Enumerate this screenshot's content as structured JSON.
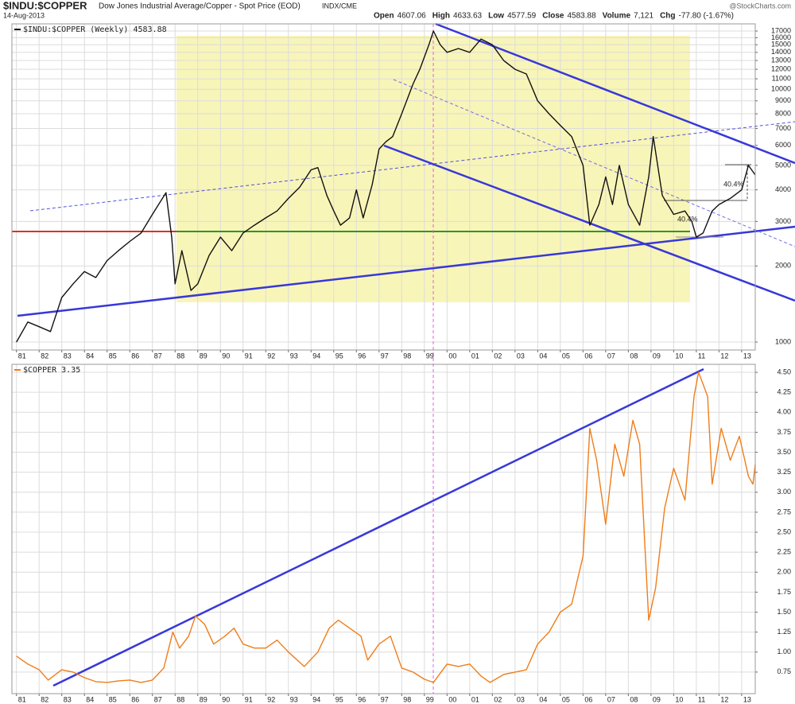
{
  "chart_data": [
    {
      "type": "line",
      "title": "$INDU:$COPPER",
      "subtitle": "Dow Jones Industrial Average/Copper - Spot Price (EOD)",
      "source": "INDX/CME",
      "date": "14-Aug-2013",
      "credit": "@StockCharts.com",
      "quote": [
        {
          "label": "Open",
          "value": "4607.06"
        },
        {
          "label": "High",
          "value": "4633.63"
        },
        {
          "label": "Low",
          "value": "4577.59"
        },
        {
          "label": "Close",
          "value": "4583.88"
        },
        {
          "label": "Volume",
          "value": "7,121"
        },
        {
          "label": "Chg",
          "value": "-77.80 (-1.67%)"
        }
      ],
      "annotations": [
        "40.4%",
        "40.4%"
      ],
      "log_scale": true,
      "grid": true,
      "xlim": [
        1980.8,
        2013.6
      ],
      "ylim": [
        930,
        18150
      ],
      "yticks": [
        1000,
        2000,
        3000,
        4000,
        5000,
        6000,
        7000,
        8000,
        9000,
        10000,
        11000,
        12000,
        13000,
        14000,
        15000,
        16000,
        17000
      ],
      "xticks": [
        {
          "value": 1981,
          "label": "81"
        },
        {
          "value": 1982,
          "label": "82"
        },
        {
          "value": 1983,
          "label": "83"
        },
        {
          "value": 1984,
          "label": "84"
        },
        {
          "value": 1985,
          "label": "85"
        },
        {
          "value": 1986,
          "label": "86"
        },
        {
          "value": 1987,
          "label": "87"
        },
        {
          "value": 1988,
          "label": "88"
        },
        {
          "value": 1989,
          "label": "89"
        },
        {
          "value": 1990,
          "label": "90"
        },
        {
          "value": 1991,
          "label": "91"
        },
        {
          "value": 1992,
          "label": "92"
        },
        {
          "value": 1993,
          "label": "93"
        },
        {
          "value": 1994,
          "label": "94"
        },
        {
          "value": 1995,
          "label": "95"
        },
        {
          "value": 1996,
          "label": "96"
        },
        {
          "value": 1997,
          "label": "97"
        },
        {
          "value": 1998,
          "label": "98"
        },
        {
          "value": 1999,
          "label": "99"
        },
        {
          "value": 2000,
          "label": "00"
        },
        {
          "value": 2001,
          "label": "01"
        },
        {
          "value": 2002,
          "label": "02"
        },
        {
          "value": 2003,
          "label": "03"
        },
        {
          "value": 2004,
          "label": "04"
        },
        {
          "value": 2005,
          "label": "05"
        },
        {
          "value": 2006,
          "label": "06"
        },
        {
          "value": 2007,
          "label": "07"
        },
        {
          "value": 2008,
          "label": "08"
        },
        {
          "value": 2009,
          "label": "09"
        },
        {
          "value": 2010,
          "label": "10"
        },
        {
          "value": 2011,
          "label": "11"
        },
        {
          "value": 2012,
          "label": "12"
        },
        {
          "value": 2013,
          "label": "13"
        }
      ],
      "x": [
        1981.0,
        1981.5,
        1982.0,
        1982.5,
        1983.0,
        1983.5,
        1984.0,
        1984.5,
        1985.0,
        1985.5,
        1986.0,
        1986.5,
        1987.0,
        1987.6,
        1987.85,
        1988.0,
        1988.3,
        1988.7,
        1989.0,
        1989.5,
        1990.0,
        1990.5,
        1991.0,
        1991.5,
        1992.0,
        1992.5,
        1993.0,
        1993.5,
        1994.0,
        1994.3,
        1994.7,
        1995.0,
        1995.3,
        1995.7,
        1996.0,
        1996.3,
        1996.7,
        1997.0,
        1997.3,
        1997.6,
        1998.0,
        1998.5,
        1998.8,
        1999.2,
        1999.4,
        1999.7,
        2000.0,
        2000.5,
        2001.0,
        2001.5,
        2002.0,
        2002.5,
        2003.0,
        2003.5,
        2004.0,
        2004.5,
        2005.0,
        2005.5,
        2006.0,
        2006.3,
        2006.7,
        2007.0,
        2007.3,
        2007.6,
        2008.0,
        2008.5,
        2008.9,
        2009.1,
        2009.5,
        2010.0,
        2010.5,
        2010.8,
        2011.0,
        2011.3,
        2011.7,
        2012.0,
        2012.5,
        2013.0,
        2013.3,
        2013.6
      ],
      "series": [
        {
          "name": "$INDU:$COPPER (Weekly) 4583.88",
          "color": "#111111",
          "values": [
            1000,
            1200,
            1150,
            1100,
            1500,
            1700,
            1900,
            1800,
            2100,
            2300,
            2500,
            2700,
            3200,
            3900,
            2600,
            1700,
            2300,
            1600,
            1700,
            2200,
            2600,
            2300,
            2700,
            2900,
            3100,
            3300,
            3700,
            4100,
            4800,
            4900,
            3800,
            3300,
            2900,
            3100,
            4000,
            3100,
            4200,
            5800,
            6200,
            6500,
            8000,
            10500,
            12000,
            15000,
            17000,
            15000,
            14000,
            14500,
            14000,
            15800,
            15000,
            13000,
            12000,
            11500,
            9000,
            8000,
            7200,
            6500,
            5000,
            2900,
            3500,
            4500,
            3500,
            5000,
            3500,
            2900,
            4500,
            6500,
            3800,
            3200,
            3300,
            3000,
            2600,
            2700,
            3300,
            3500,
            3700,
            4000,
            5000,
            4584
          ]
        }
      ]
    },
    {
      "type": "line",
      "grid": true,
      "xlim": [
        1980.8,
        2013.6
      ],
      "ylim": [
        0.48,
        4.6
      ],
      "yticks": [
        0.75,
        {
          "value": 1,
          "label": "1.00"
        },
        1.25,
        {
          "value": 1.5,
          "label": "1.50"
        },
        1.75,
        {
          "value": 2,
          "label": "2.00"
        },
        2.25,
        {
          "value": 2.5,
          "label": "2.50"
        },
        2.75,
        {
          "value": 3,
          "label": "3.00"
        },
        3.25,
        {
          "value": 3.5,
          "label": "3.50"
        },
        3.75,
        {
          "value": 4,
          "label": "4.00"
        },
        4.25,
        {
          "value": 4.5,
          "label": "4.50"
        }
      ],
      "xticks": [
        {
          "value": 1981,
          "label": "81"
        },
        {
          "value": 1982,
          "label": "82"
        },
        {
          "value": 1983,
          "label": "83"
        },
        {
          "value": 1984,
          "label": "84"
        },
        {
          "value": 1985,
          "label": "85"
        },
        {
          "value": 1986,
          "label": "86"
        },
        {
          "value": 1987,
          "label": "87"
        },
        {
          "value": 1988,
          "label": "88"
        },
        {
          "value": 1989,
          "label": "89"
        },
        {
          "value": 1990,
          "label": "90"
        },
        {
          "value": 1991,
          "label": "91"
        },
        {
          "value": 1992,
          "label": "92"
        },
        {
          "value": 1993,
          "label": "93"
        },
        {
          "value": 1994,
          "label": "94"
        },
        {
          "value": 1995,
          "label": "95"
        },
        {
          "value": 1996,
          "label": "96"
        },
        {
          "value": 1997,
          "label": "97"
        },
        {
          "value": 1998,
          "label": "98"
        },
        {
          "value": 1999,
          "label": "99"
        },
        {
          "value": 2000,
          "label": "00"
        },
        {
          "value": 2001,
          "label": "01"
        },
        {
          "value": 2002,
          "label": "02"
        },
        {
          "value": 2003,
          "label": "03"
        },
        {
          "value": 2004,
          "label": "04"
        },
        {
          "value": 2005,
          "label": "05"
        },
        {
          "value": 2006,
          "label": "06"
        },
        {
          "value": 2007,
          "label": "07"
        },
        {
          "value": 2008,
          "label": "08"
        },
        {
          "value": 2009,
          "label": "09"
        },
        {
          "value": 2010,
          "label": "10"
        },
        {
          "value": 2011,
          "label": "11"
        },
        {
          "value": 2012,
          "label": "12"
        },
        {
          "value": 2013,
          "label": "13"
        }
      ],
      "x": [
        1981.0,
        1981.5,
        1982.0,
        1982.4,
        1983.0,
        1983.5,
        1984.0,
        1984.5,
        1985.0,
        1985.5,
        1986.0,
        1986.5,
        1987.0,
        1987.5,
        1987.9,
        1988.2,
        1988.6,
        1988.9,
        1989.3,
        1989.7,
        1990.2,
        1990.6,
        1991.0,
        1991.5,
        1992.0,
        1992.5,
        1993.0,
        1993.7,
        1994.3,
        1994.8,
        1995.2,
        1995.7,
        1996.2,
        1996.5,
        1997.0,
        1997.5,
        1998.0,
        1998.5,
        1999.0,
        1999.4,
        2000.0,
        2000.5,
        2001.0,
        2001.5,
        2001.9,
        2002.5,
        2003.0,
        2003.5,
        2004.0,
        2004.5,
        2005.0,
        2005.5,
        2006.0,
        2006.3,
        2006.6,
        2007.0,
        2007.4,
        2007.8,
        2008.2,
        2008.5,
        2008.9,
        2009.2,
        2009.6,
        2010.0,
        2010.5,
        2010.9,
        2011.1,
        2011.5,
        2011.7,
        2012.1,
        2012.5,
        2012.9,
        2013.3,
        2013.5,
        2013.6
      ],
      "series": [
        {
          "name": "$COPPER 3.35",
          "color": "#f07d1a",
          "values": [
            0.95,
            0.85,
            0.78,
            0.65,
            0.78,
            0.75,
            0.68,
            0.63,
            0.62,
            0.64,
            0.65,
            0.62,
            0.65,
            0.8,
            1.25,
            1.05,
            1.2,
            1.45,
            1.35,
            1.1,
            1.2,
            1.3,
            1.1,
            1.05,
            1.05,
            1.15,
            1.0,
            0.82,
            1.0,
            1.3,
            1.4,
            1.3,
            1.2,
            0.9,
            1.1,
            1.2,
            0.8,
            0.75,
            0.66,
            0.62,
            0.85,
            0.82,
            0.85,
            0.7,
            0.62,
            0.72,
            0.75,
            0.78,
            1.1,
            1.25,
            1.5,
            1.6,
            2.2,
            3.8,
            3.4,
            2.6,
            3.6,
            3.2,
            3.9,
            3.6,
            1.4,
            1.8,
            2.8,
            3.3,
            2.9,
            4.2,
            4.5,
            4.2,
            3.1,
            3.8,
            3.4,
            3.7,
            3.2,
            3.1,
            3.35
          ]
        }
      ]
    }
  ]
}
